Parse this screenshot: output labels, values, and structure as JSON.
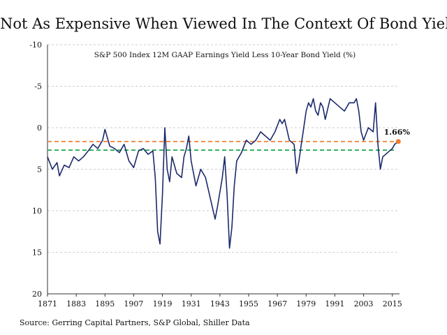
{
  "title": "Not As Expensive When Viewed In The Context Of Bond Yields",
  "source": "Source: Gerring Capital Partners, S&P Global, Shiller Data",
  "colors": {
    "line": "#1b2a6b",
    "orange": "#ee7d31",
    "green": "#1aa64a",
    "grid": "#bfbfbf"
  },
  "chart_data": {
    "type": "line",
    "subtitle": "S&P 500 Index 12M GAAP Earnings Yield Less 10-Year Bond Yield (%)",
    "xlabel": "",
    "ylabel": "",
    "y_inverted": true,
    "ylim": [
      -10,
      20
    ],
    "xlim": [
      1871,
      2018
    ],
    "x_ticks": [
      "1871",
      "1883",
      "1895",
      "1907",
      "1919",
      "1931",
      "1943",
      "1955",
      "1967",
      "1979",
      "1991",
      "2003",
      "2015"
    ],
    "y_ticks": [
      "-10",
      "-5",
      "0",
      "5",
      "10",
      "15",
      "20"
    ],
    "grid": "horizontal dashed",
    "reference_lines": [
      {
        "name": "current",
        "value": 1.66,
        "color": "#ee7d31",
        "style": "dashed"
      },
      {
        "name": "average",
        "value": 2.7,
        "color": "#1aa64a",
        "style": "dashed"
      }
    ],
    "callout": {
      "label": "1.66%",
      "x": 2017.5,
      "y": 1.66
    },
    "series": [
      {
        "x": [
          1871,
          1873,
          1875,
          1876,
          1878,
          1880,
          1882,
          1884,
          1886,
          1888,
          1890,
          1892,
          1894,
          1895,
          1897,
          1899,
          1901,
          1903,
          1905,
          1907,
          1909,
          1911,
          1913,
          1915,
          1916,
          1917,
          1918,
          1919,
          1920,
          1921,
          1922,
          1923,
          1925,
          1927,
          1928,
          1929,
          1930,
          1931,
          1933,
          1935,
          1937,
          1939,
          1941,
          1942,
          1944,
          1945,
          1946,
          1947,
          1948,
          1949,
          1950,
          1952,
          1954,
          1956,
          1958,
          1960,
          1962,
          1964,
          1966,
          1968,
          1969,
          1970,
          1972,
          1974,
          1975,
          1976,
          1977,
          1978,
          1979,
          1980,
          1981,
          1982,
          1983,
          1984,
          1985,
          1986,
          1987,
          1989,
          1991,
          1993,
          1995,
          1997,
          1999,
          2000,
          2001,
          2002,
          2003,
          2005,
          2007,
          2008,
          2009,
          2010,
          2011,
          2013,
          2015,
          2016,
          2017.5
        ],
        "values": [
          3.5,
          5.0,
          4.2,
          5.8,
          4.5,
          4.8,
          3.5,
          4.0,
          3.5,
          2.8,
          2.0,
          2.5,
          1.5,
          0.2,
          2.2,
          2.5,
          3.0,
          2.0,
          4.0,
          4.8,
          2.8,
          2.5,
          3.2,
          2.8,
          6.0,
          12.5,
          14.0,
          8.0,
          0.0,
          5.0,
          6.5,
          3.5,
          5.5,
          6.0,
          3.5,
          2.5,
          1.0,
          4.0,
          7.0,
          5.0,
          6.0,
          8.5,
          11.0,
          9.5,
          6.0,
          3.5,
          8.0,
          14.5,
          12.0,
          7.0,
          4.0,
          3.0,
          1.5,
          2.0,
          1.5,
          0.5,
          1.0,
          1.5,
          0.5,
          -1.0,
          -0.5,
          -1.0,
          1.5,
          2.0,
          5.5,
          4.0,
          2.0,
          0.0,
          -2.0,
          -3.0,
          -2.5,
          -3.5,
          -2.0,
          -1.5,
          -3.0,
          -2.5,
          -1.0,
          -3.5,
          -3.0,
          -2.5,
          -2.0,
          -3.0,
          -3.0,
          -3.5,
          -2.0,
          0.5,
          1.5,
          0.0,
          0.5,
          -3.0,
          2.0,
          5.0,
          3.5,
          3.0,
          2.5,
          2.0,
          1.66
        ]
      }
    ]
  }
}
